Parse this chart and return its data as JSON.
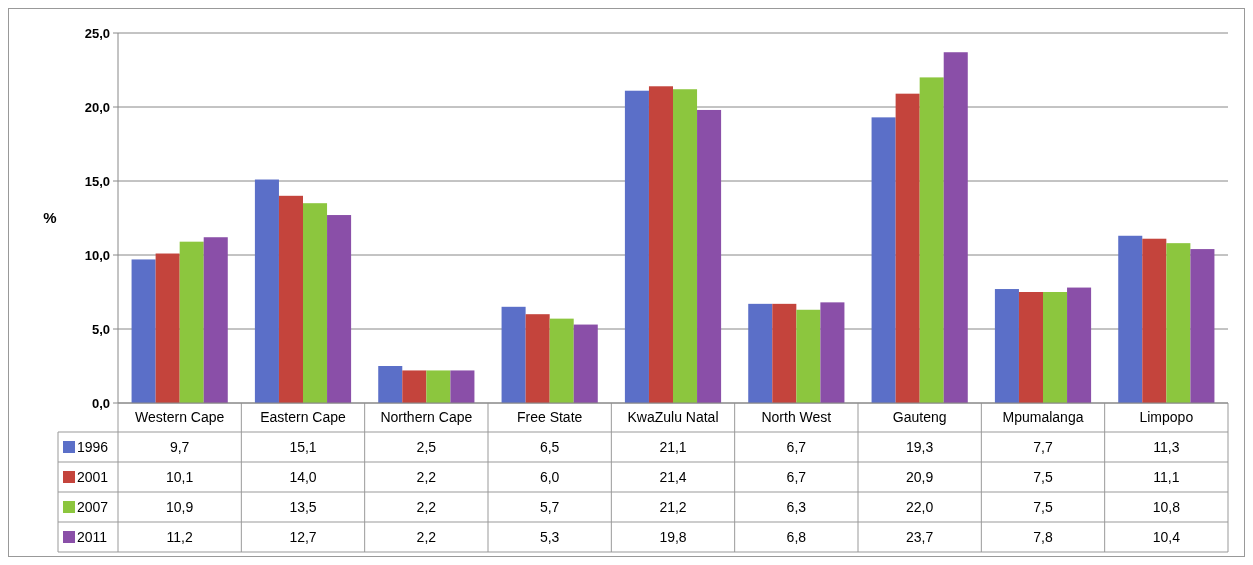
{
  "chart_data": {
    "type": "bar",
    "ylabel": "%",
    "categories": [
      "Western Cape",
      "Eastern Cape",
      "Northern Cape",
      "Free State",
      "KwaZulu Natal",
      "North West",
      "Gauteng",
      "Mpumalanga",
      "Limpopo"
    ],
    "series": [
      {
        "name": "1996",
        "color": "#5b6fc8",
        "values": [
          9.7,
          15.1,
          2.5,
          6.5,
          21.1,
          6.7,
          19.3,
          7.7,
          11.3
        ],
        "value_labels": [
          "9,7",
          "15,1",
          "2,5",
          "6,5",
          "21,1",
          "6,7",
          "19,3",
          "7,7",
          "11,3"
        ]
      },
      {
        "name": "2001",
        "color": "#c4443c",
        "values": [
          10.1,
          14.0,
          2.2,
          6.0,
          21.4,
          6.7,
          20.9,
          7.5,
          11.1
        ],
        "value_labels": [
          "10,1",
          "14,0",
          "2,2",
          "6,0",
          "21,4",
          "6,7",
          "20,9",
          "7,5",
          "11,1"
        ]
      },
      {
        "name": "2007",
        "color": "#8cc63e",
        "values": [
          10.9,
          13.5,
          2.2,
          5.7,
          21.2,
          6.3,
          22.0,
          7.5,
          10.8
        ],
        "value_labels": [
          "10,9",
          "13,5",
          "2,2",
          "5,7",
          "21,2",
          "6,3",
          "22,0",
          "7,5",
          "10,8"
        ]
      },
      {
        "name": "2011",
        "color": "#8a4fa8",
        "values": [
          11.2,
          12.7,
          2.2,
          5.3,
          19.8,
          6.8,
          23.7,
          7.8,
          10.4
        ],
        "value_labels": [
          "11,2",
          "12,7",
          "2,2",
          "5,3",
          "19,8",
          "6,8",
          "23,7",
          "7,8",
          "10,4"
        ]
      }
    ],
    "ylim": [
      0,
      25
    ],
    "yticks": [
      {
        "value": 0,
        "label": "0,0"
      },
      {
        "value": 5,
        "label": "5,0"
      },
      {
        "value": 10,
        "label": "10,0"
      },
      {
        "value": 15,
        "label": "15,0"
      },
      {
        "value": 20,
        "label": "20,0"
      },
      {
        "value": 25,
        "label": "25,0"
      }
    ],
    "grid": "y",
    "legend": "bottom"
  }
}
